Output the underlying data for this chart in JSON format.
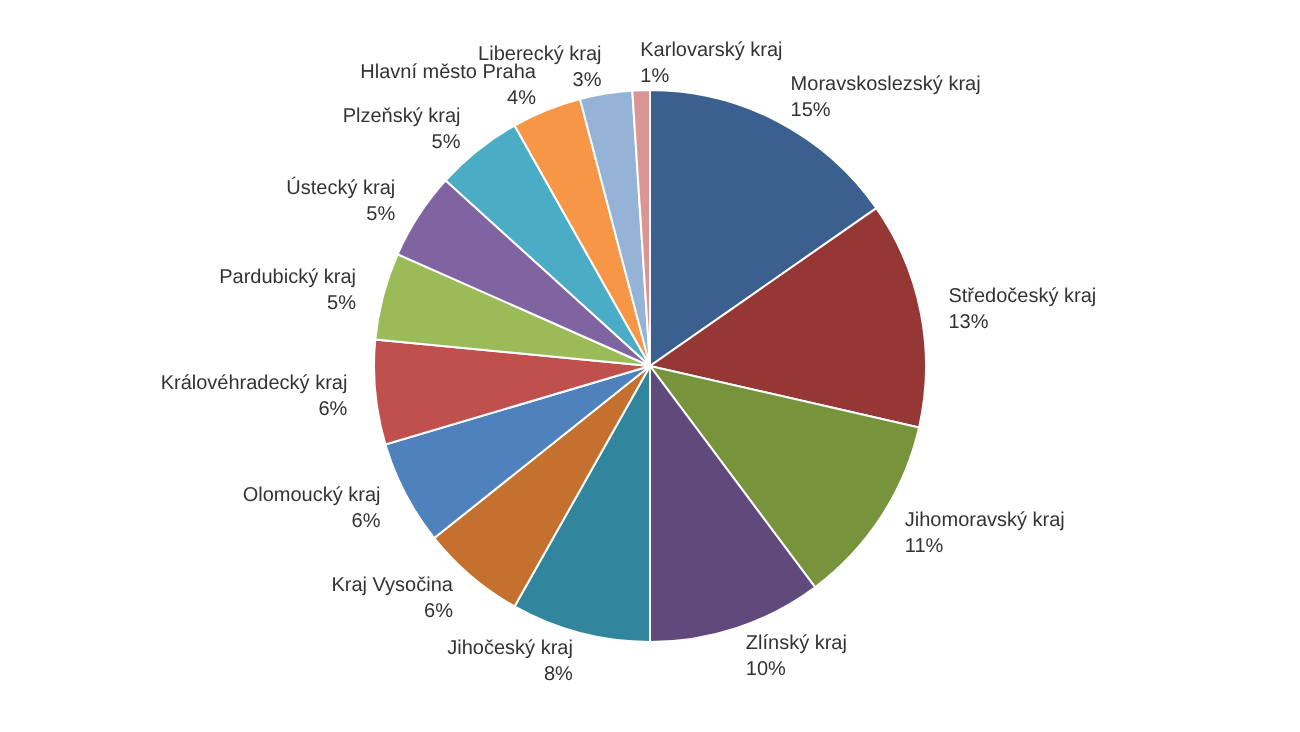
{
  "chart_data": {
    "type": "pie",
    "categories": [
      "Moravskoslezský kraj",
      "Středočeský kraj",
      "Jihomoravský kraj",
      "Zlínský kraj",
      "Jihočeský kraj",
      "Kraj Vysočina",
      "Olomoucký kraj",
      "Královéhradecký kraj",
      "Pardubický kraj",
      "Ústecký kraj",
      "Plzeňský kraj",
      "Hlavní město Praha",
      "Liberecký kraj",
      "Karlovarský kraj"
    ],
    "values": [
      15,
      13,
      11,
      10,
      8,
      6,
      6,
      6,
      5,
      5,
      5,
      4,
      3,
      1
    ],
    "value_labels": [
      "15%",
      "13%",
      "11%",
      "10%",
      "8%",
      "6%",
      "6%",
      "6%",
      "5%",
      "5%",
      "5%",
      "4%",
      "3%",
      "1%"
    ],
    "colors": [
      "#3b5f8f",
      "#953735",
      "#77933c",
      "#604a7b",
      "#31859c",
      "#c4702f",
      "#4f81bd",
      "#c0504d",
      "#9bbb59",
      "#8064a2",
      "#4bacc6",
      "#f79646",
      "#95b3d7",
      "#d99694"
    ]
  }
}
